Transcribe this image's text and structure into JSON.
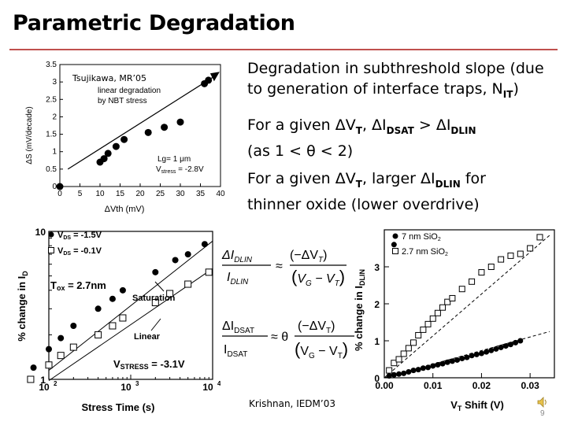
{
  "slide": {
    "title": "Parametric Degradation",
    "page_number": "9",
    "bullets": [
      {
        "pre": "Degradation in subthreshold slope (due to generation of interface traps, N",
        "sub": "IT",
        "post": ")"
      },
      {
        "a": "For a given ",
        "vt": "V",
        "vt_sub": "T",
        "b": ", ",
        "ids": "I",
        "ids_sub": "DSAT",
        "c": " > ",
        "idl": "I",
        "idl_sub": "DLIN",
        "d": "(as 1 < θ < 2)"
      },
      {
        "a": "For a given ",
        "vt": "V",
        "vt_sub": "T",
        "b": ", larger ",
        "idl": "I",
        "idl_sub": "DLIN",
        "c": " for",
        "d": "thinner oxide (lower overdrive)"
      }
    ],
    "delta_symbol": "Δ",
    "cite_top": "Tsujikawa, MR’05",
    "cite_bottom": "Krishnan, IEDM’03"
  },
  "chart_data": [
    {
      "type": "scatter",
      "xlabel": "ΔVth (mV)",
      "ylabel": "ΔS (mV/decade)",
      "xlim": [
        0,
        40
      ],
      "ylim": [
        0,
        3.5
      ],
      "xticks": [
        "0",
        "5",
        "10",
        "15",
        "20",
        "25",
        "30",
        "35",
        "40"
      ],
      "yticks": [
        "0",
        "0.5",
        "1",
        "1.5",
        "2",
        "2.5",
        "3",
        "3.5"
      ],
      "annotations": [
        "linear degradation",
        "by NBT stress",
        "Lg= 1 μm",
        "V",
        "stress",
        " = -2.8V"
      ],
      "series": [
        {
          "x": [
            0,
            10,
            11,
            12,
            14,
            16,
            22,
            26,
            30,
            36,
            37
          ],
          "y": [
            0,
            0.7,
            0.8,
            0.95,
            1.15,
            1.35,
            1.55,
            1.7,
            1.85,
            2.95,
            3.05
          ]
        }
      ],
      "trend": {
        "x": [
          2,
          39
        ],
        "y": [
          0.5,
          3.2
        ]
      }
    },
    {
      "type": "line",
      "xlabel": "Stress Time (s)",
      "ylabel": "% change in I",
      "ylabel_sub": "D",
      "x_log": true,
      "y_log": true,
      "xlim": [
        100,
        10000
      ],
      "ylim": [
        1,
        10
      ],
      "xticks": [
        "10",
        "10",
        "10"
      ],
      "xtick_exp": [
        "2",
        "3",
        "4"
      ],
      "yticks": [
        "10",
        "1"
      ],
      "tox_label": "T",
      "tox_sub": "ox",
      "tox_value": " = 2.7nm",
      "stress_label": "V",
      "stress_sub": "STRESS",
      "stress_value": " = -3.1V",
      "curve_labels": [
        "Saturation",
        "Linear"
      ],
      "legend": [
        {
          "name": "V",
          "sub": "DS",
          "value": " = -1.5V",
          "marker": "filled"
        },
        {
          "name": "V",
          "sub": "DS",
          "value": " = -0.1V",
          "marker": "open"
        }
      ],
      "series": [
        {
          "name": "V_DS = -1.5V",
          "x": [
            65,
            100,
            140,
            200,
            400,
            600,
            800,
            2000,
            3500,
            5000,
            8000
          ],
          "y": [
            1.2,
            1.6,
            1.9,
            2.3,
            3.0,
            3.5,
            4.0,
            5.3,
            6.4,
            7.0,
            8.2
          ]
        },
        {
          "name": "V_DS = -0.1V",
          "x": [
            60,
            100,
            140,
            200,
            400,
            600,
            800,
            2000,
            3000,
            5000,
            9000
          ],
          "y": [
            1.0,
            1.25,
            1.45,
            1.65,
            2.0,
            2.3,
            2.6,
            3.3,
            3.8,
            4.4,
            5.3
          ]
        }
      ]
    },
    {
      "type": "scatter",
      "xlabel": "V",
      "xlabel_sub": "T",
      "xlabel_rest": " Shift (V)",
      "ylabel": "% change in I",
      "ylabel_sub": "DLIN",
      "xlim": [
        0,
        0.035
      ],
      "ylim": [
        0,
        4
      ],
      "xticks": [
        "0.00",
        "0.01",
        "0.02",
        "0.03"
      ],
      "yticks": [
        "0",
        "1",
        "2",
        "3"
      ],
      "legend": [
        {
          "name": "7 nm SiO",
          "sub": "2",
          "marker": "filled"
        },
        {
          "name": "2.7 nm SiO",
          "sub": "2",
          "marker": "open"
        }
      ],
      "series": [
        {
          "name": "7 nm SiO2",
          "x": [
            0.001,
            0.002,
            0.003,
            0.004,
            0.005,
            0.006,
            0.007,
            0.008,
            0.009,
            0.01,
            0.011,
            0.012,
            0.013,
            0.014,
            0.015,
            0.016,
            0.017,
            0.018,
            0.019,
            0.02,
            0.021,
            0.022,
            0.023,
            0.024,
            0.025,
            0.026,
            0.027,
            0.028,
            0.002
          ],
          "y": [
            0.05,
            0.08,
            0.1,
            0.12,
            0.16,
            0.2,
            0.22,
            0.26,
            0.28,
            0.32,
            0.35,
            0.38,
            0.42,
            0.45,
            0.48,
            0.52,
            0.55,
            0.6,
            0.63,
            0.66,
            0.7,
            0.74,
            0.78,
            0.82,
            0.86,
            0.9,
            0.95,
            1.0,
            3.6
          ]
        },
        {
          "name": "2.7 nm SiO2",
          "x": [
            0.001,
            0.002,
            0.003,
            0.004,
            0.005,
            0.006,
            0.007,
            0.008,
            0.009,
            0.01,
            0.011,
            0.012,
            0.013,
            0.014,
            0.016,
            0.018,
            0.02,
            0.022,
            0.024,
            0.026,
            0.028,
            0.03,
            0.032
          ],
          "y": [
            0.2,
            0.4,
            0.5,
            0.65,
            0.8,
            0.95,
            1.15,
            1.3,
            1.45,
            1.6,
            1.75,
            1.9,
            2.05,
            2.15,
            2.4,
            2.6,
            2.85,
            3.0,
            3.2,
            3.3,
            3.35,
            3.5,
            3.8
          ]
        }
      ]
    }
  ]
}
